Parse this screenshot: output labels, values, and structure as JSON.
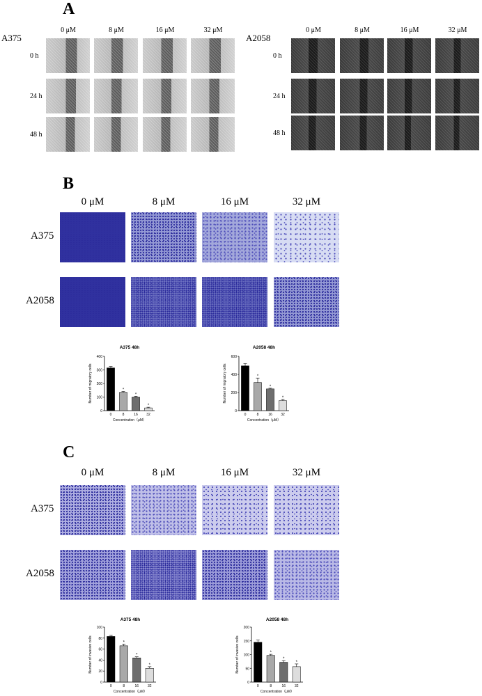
{
  "panels": {
    "a": {
      "letter": "A",
      "groups": [
        {
          "cell_line": "A375",
          "concentrations": [
            "0 μM",
            "8 μM",
            "16 μM",
            "32 μM"
          ],
          "times": [
            "0 h",
            "24 h",
            "48 h"
          ]
        },
        {
          "cell_line": "A2058",
          "concentrations": [
            "0 μM",
            "8 μM",
            "16 μM",
            "32 μM"
          ],
          "times": [
            "0 h",
            "24 h",
            "48 h"
          ]
        }
      ]
    },
    "b": {
      "letter": "B",
      "concentrations": [
        "0 μM",
        "8 μM",
        "16 μM",
        "32 μM"
      ],
      "cell_lines": [
        "A375",
        "A2058"
      ]
    },
    "c": {
      "letter": "C",
      "concentrations": [
        "0 μM",
        "8 μM",
        "16 μM",
        "32 μM"
      ],
      "cell_lines": [
        "A375",
        "A2058"
      ]
    }
  },
  "colors": {
    "bar_0": "#000000",
    "bar_8": "#a9a9a9",
    "bar_16": "#6e6e6e",
    "bar_32": "#dddddd",
    "stain": "#3a3aa8"
  },
  "chart_data": [
    {
      "type": "bar",
      "title": "A375  48h",
      "categories": [
        "0",
        "8",
        "16",
        "32"
      ],
      "values": [
        315,
        135,
        100,
        20
      ],
      "errors": [
        10,
        6,
        6,
        5
      ],
      "stars": [
        "",
        "*",
        "*",
        "*"
      ],
      "xlabel": "Concentration（μM）",
      "ylabel": "Number of migratory cells",
      "ylim": [
        0,
        400
      ],
      "yticks": [
        0,
        100,
        200,
        300,
        400
      ]
    },
    {
      "type": "bar",
      "title": "A2058  48h",
      "categories": [
        "0",
        "8",
        "16",
        "32"
      ],
      "values": [
        495,
        310,
        240,
        110
      ],
      "errors": [
        25,
        50,
        8,
        15
      ],
      "stars": [
        "",
        "*",
        "*",
        "*"
      ],
      "xlabel": "Concentration（μM）",
      "ylabel": "Number of migratory cells",
      "ylim": [
        0,
        600
      ],
      "yticks": [
        0,
        200,
        400,
        600
      ]
    },
    {
      "type": "bar",
      "title": "A375  48h",
      "categories": [
        "0",
        "8",
        "16",
        "32"
      ],
      "values": [
        83,
        66,
        44,
        25
      ],
      "errors": [
        2,
        3,
        2,
        3
      ],
      "stars": [
        "",
        "*",
        "*",
        "*"
      ],
      "xlabel": "Concentration（μM）",
      "ylabel": "Number of invasive cells",
      "ylim": [
        0,
        100
      ],
      "yticks": [
        0,
        20,
        40,
        60,
        80,
        100
      ]
    },
    {
      "type": "bar",
      "title": "A2058  48h",
      "categories": [
        "0",
        "8",
        "16",
        "32"
      ],
      "values": [
        145,
        97,
        72,
        56
      ],
      "errors": [
        8,
        4,
        6,
        10
      ],
      "stars": [
        "",
        "*",
        "*",
        "*"
      ],
      "xlabel": "Concentration（μM）",
      "ylabel": "Number of invasive cells",
      "ylim": [
        0,
        200
      ],
      "yticks": [
        0,
        50,
        100,
        150,
        200
      ]
    }
  ]
}
